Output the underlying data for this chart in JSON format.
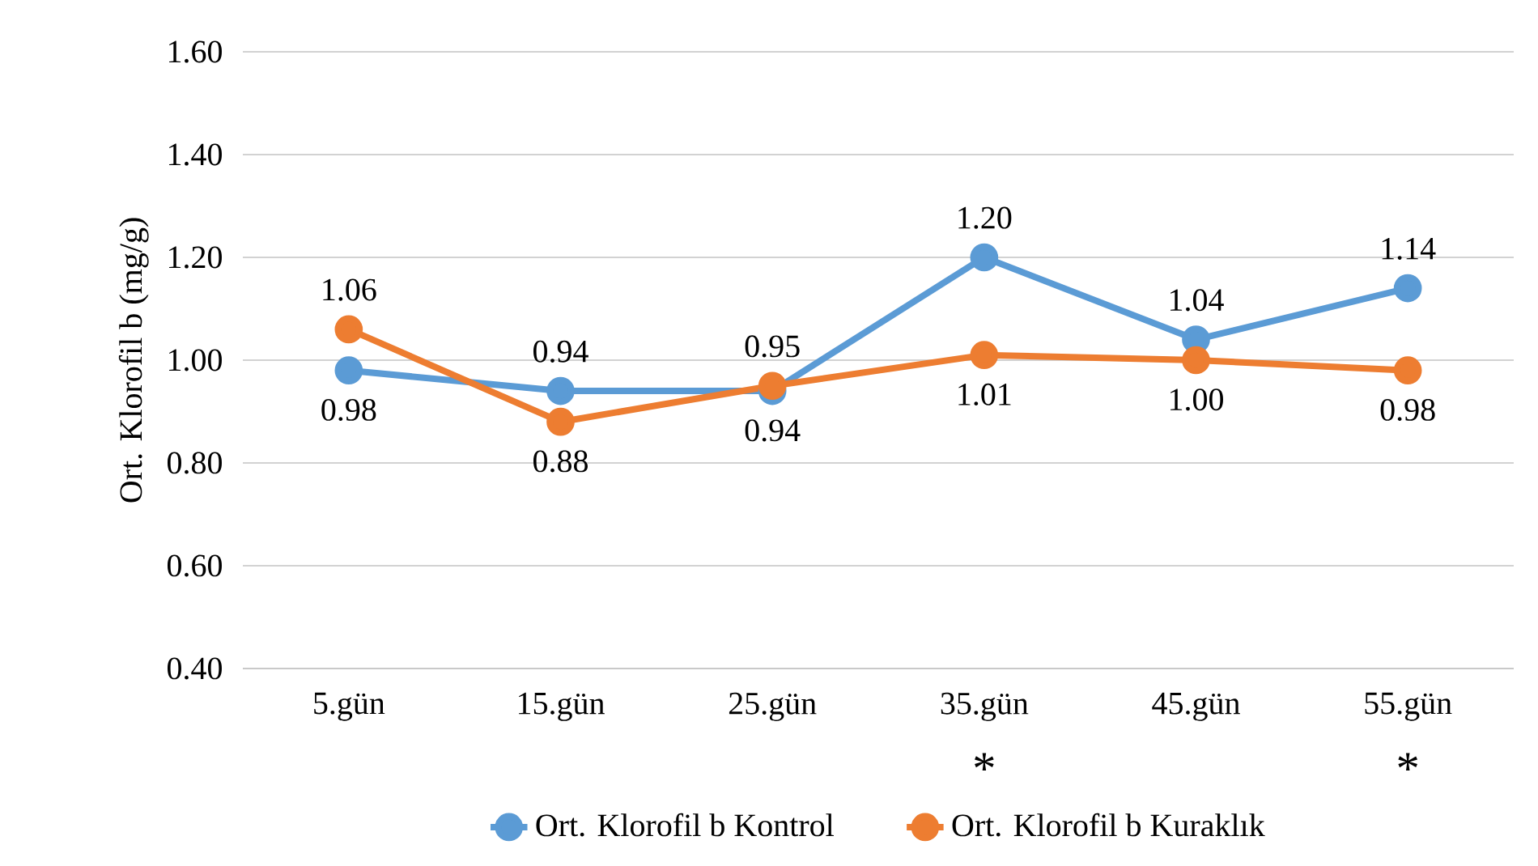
{
  "chart_data": {
    "type": "line",
    "ylabel": "Ort. Klorofil b (mg/g)",
    "categories": [
      "5.gün",
      "15.gün",
      "25.gün",
      "35.gün",
      "45.gün",
      "55.gün"
    ],
    "series": [
      {
        "name": "Ort. Klorofil b Kontrol",
        "color": "#5b9bd5",
        "values": [
          0.98,
          0.94,
          0.94,
          1.2,
          1.04,
          1.14
        ],
        "value_labels": [
          "0.98",
          "0.94",
          "0.94",
          "1.20",
          "1.04",
          "1.14"
        ]
      },
      {
        "name": "Ort. Klorofil b Kuraklık",
        "color": "#ed7d31",
        "values": [
          1.06,
          0.88,
          0.95,
          1.01,
          1.0,
          0.98
        ],
        "value_labels": [
          "1.06",
          "0.88",
          "0.95",
          "1.01",
          "1.00",
          "0.98"
        ]
      }
    ],
    "ylim": [
      0.4,
      1.6
    ],
    "yticks": [
      {
        "value": 0.4,
        "label": "0.40"
      },
      {
        "value": 0.6,
        "label": "0.60"
      },
      {
        "value": 0.8,
        "label": "0.80"
      },
      {
        "value": 1.0,
        "label": "1.00"
      },
      {
        "value": 1.2,
        "label": "1.20"
      },
      {
        "value": 1.4,
        "label": "1.40"
      },
      {
        "value": 1.6,
        "label": "1.60"
      }
    ],
    "grid": "y",
    "legend": "bottom",
    "marker": "circle",
    "line_style": "solid",
    "annotations": [
      "*",
      "*"
    ]
  }
}
